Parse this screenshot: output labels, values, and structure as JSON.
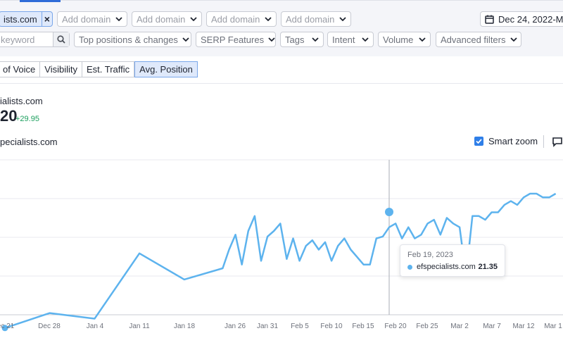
{
  "header": {
    "active_domain": "ists.com",
    "add_domain_label": "Add domain",
    "add_domain_slots": 4,
    "date_range": "Dec 24, 2022-Ma"
  },
  "filters": {
    "keyword_placeholder": "keyword",
    "top_positions": "Top positions & changes",
    "serp_features": "SERP Features",
    "tags": "Tags",
    "intent": "Intent",
    "volume": "Volume",
    "advanced": "Advanced filters"
  },
  "tabs": [
    "of Voice",
    "Visibility",
    "Est. Traffic",
    "Avg. Position"
  ],
  "active_tab": "Avg. Position",
  "summary": {
    "domain": "ialists.com",
    "value": "20",
    "delta": "+29.95"
  },
  "legend": {
    "series_label": "pecialists.com"
  },
  "controls": {
    "smart_zoom_label": "Smart zoom",
    "smart_zoom_checked": true
  },
  "tooltip": {
    "date": "Feb 19, 2023",
    "domain": "efspecialists.com",
    "value": "21.35"
  },
  "colors": {
    "series": "#5db3ee",
    "accent": "#2f6cd8",
    "active_bg": "#dfe9fb",
    "delta_positive": "#1a9e5c"
  },
  "chart_data": {
    "type": "line",
    "x_tick_labels": [
      "ec 21",
      "Dec 28",
      "Jan 4",
      "Jan 11",
      "Jan 18",
      "Jan 26",
      "Jan 31",
      "Feb 5",
      "Feb 10",
      "Feb 15",
      "Feb 20",
      "Feb 25",
      "Mar 2",
      "Mar 7",
      "Mar 12",
      "Mar 1"
    ],
    "series": [
      {
        "name": "efspecialists.com",
        "values": [
          36,
          32,
          33.5,
          16,
          23,
          20,
          15,
          11,
          19,
          10,
          6,
          18,
          11.5,
          10,
          8,
          17.5,
          12,
          18,
          14,
          12.5,
          15,
          13,
          18,
          14,
          12,
          15,
          17,
          19,
          19,
          12,
          11.5,
          9,
          8,
          12,
          9,
          12,
          11,
          8,
          7,
          11,
          6.5,
          8,
          9,
          22,
          6,
          6,
          7,
          5,
          5,
          3,
          2,
          3,
          1,
          0,
          0,
          1,
          1,
          0
        ],
        "x_days": [
          0,
          7,
          14,
          21,
          28,
          34,
          35,
          36,
          37,
          38,
          39,
          40,
          41,
          42,
          43,
          44,
          45,
          46,
          47,
          48,
          49,
          50,
          51,
          52,
          53,
          54,
          55,
          56,
          57,
          58,
          59,
          60,
          61,
          62,
          63,
          64,
          65,
          66,
          67,
          68,
          69,
          70,
          71,
          72,
          73,
          74,
          75,
          76,
          77,
          78,
          79,
          80,
          81,
          82,
          83,
          84,
          85,
          86
        ]
      }
    ],
    "highlight_index": 9,
    "grid": "horizontal"
  }
}
